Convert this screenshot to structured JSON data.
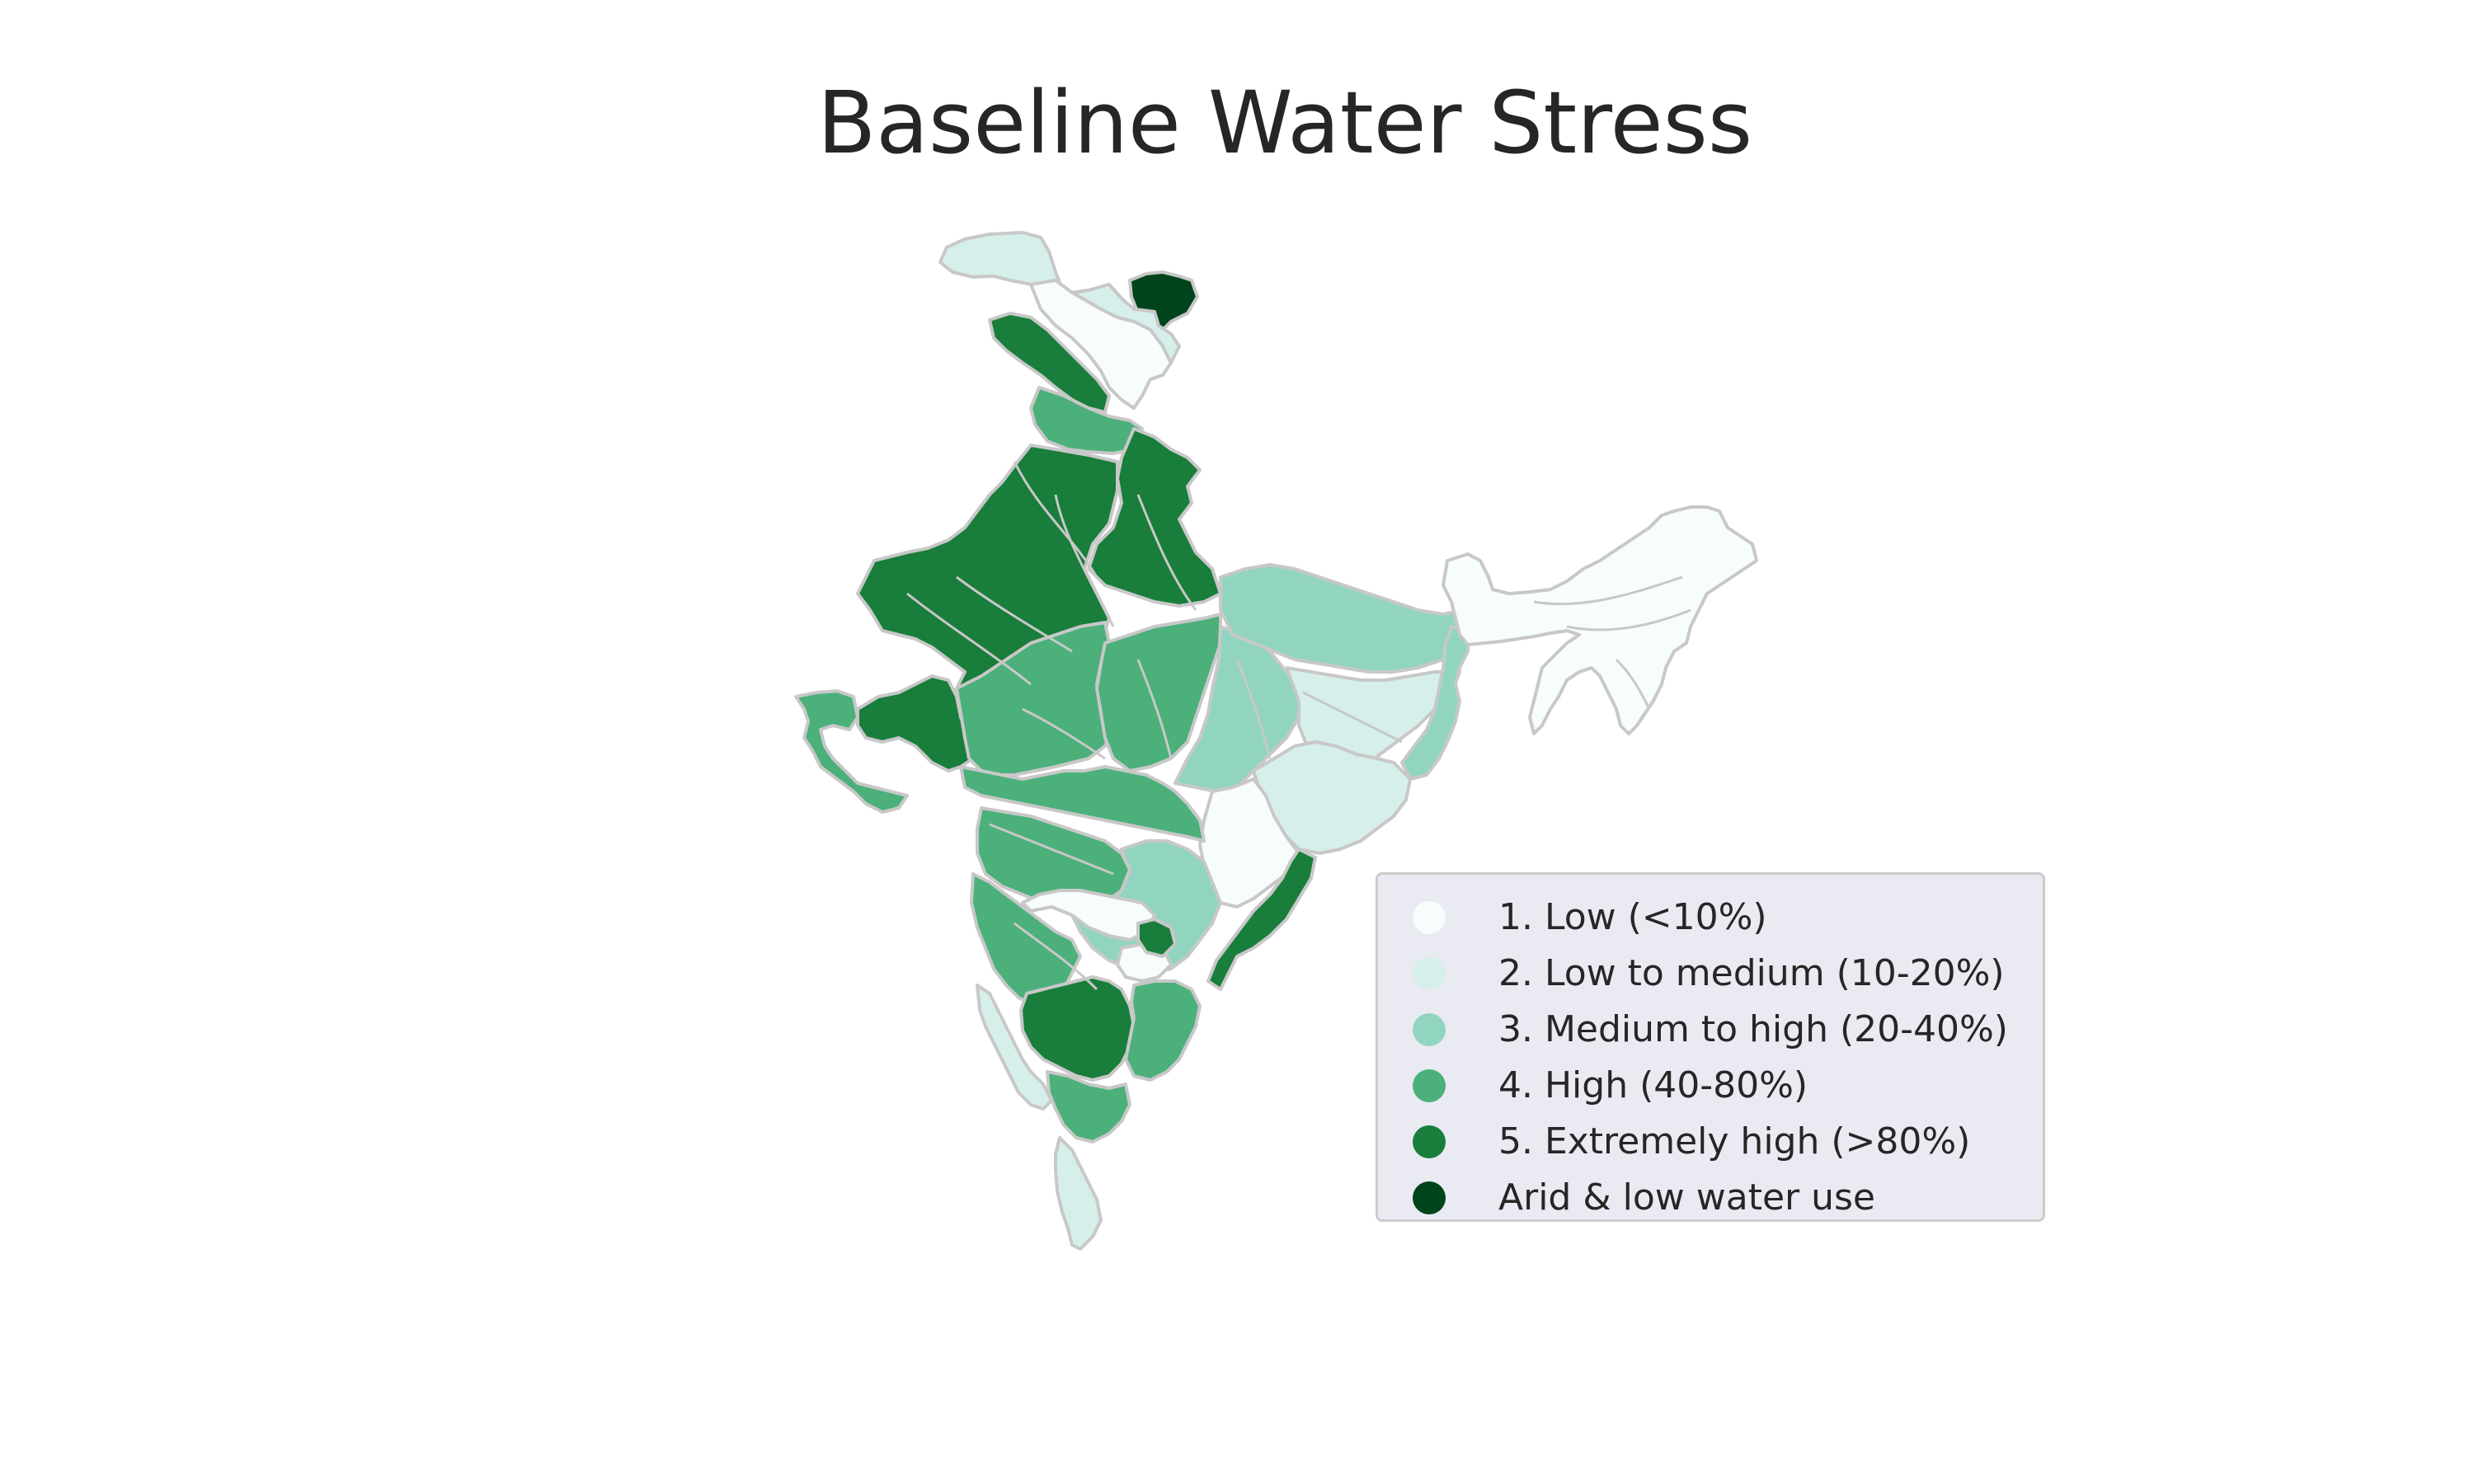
{
  "title": "Baseline Water Stress",
  "legend": [
    {
      "label": "1. Low (<10%)",
      "color": "#f7fcfd"
    },
    {
      "label": "2. Low to medium (10-20%)",
      "color": "#d6efea"
    },
    {
      "label": "3. Medium to high (20-40%)",
      "color": "#91d5c0"
    },
    {
      "label": "4. High (40-80%)",
      "color": "#4bb07a"
    },
    {
      "label": "5. Extremely high (>80%)",
      "color": "#197d3b"
    },
    {
      "label": "Arid & low water use",
      "color": "#00441b"
    }
  ],
  "regions": [
    {
      "name": "ladakh-west",
      "cat": 1
    },
    {
      "name": "ladakh-north",
      "cat": 0
    },
    {
      "name": "ladakh-east",
      "cat": 5
    },
    {
      "name": "kashmir-valley",
      "cat": 1
    },
    {
      "name": "punjab-north",
      "cat": 4
    },
    {
      "name": "punjab-himachal-east",
      "cat": 3
    },
    {
      "name": "uttarakhand-up-west",
      "cat": 4
    },
    {
      "name": "rajasthan-haryana",
      "cat": 4
    },
    {
      "name": "gujarat-north",
      "cat": 4
    },
    {
      "name": "kutch-peninsula",
      "cat": 3
    },
    {
      "name": "rajasthan-south-mp-west",
      "cat": 3
    },
    {
      "name": "madhya-pradesh-central",
      "cat": 3
    },
    {
      "name": "narmada-tapi-belt",
      "cat": 2
    },
    {
      "name": "up-bihar-plains",
      "cat": 2
    },
    {
      "name": "bihar-south-jharkhand",
      "cat": 1
    },
    {
      "name": "west-bengal",
      "cat": 2
    },
    {
      "name": "chhattisgarh-odisha",
      "cat": 1
    },
    {
      "name": "odisha-south",
      "cat": 0
    },
    {
      "name": "maharashtra-west",
      "cat": 3
    },
    {
      "name": "maharashtra-central",
      "cat": 3
    },
    {
      "name": "telangana-deccan",
      "cat": 2
    },
    {
      "name": "deccan-interior",
      "cat": 0
    },
    {
      "name": "andhra-coast",
      "cat": 4
    },
    {
      "name": "karnataka-interior",
      "cat": 3
    },
    {
      "name": "karnataka-south",
      "cat": 4
    },
    {
      "name": "tamil-nadu-east",
      "cat": 3
    },
    {
      "name": "tamil-nadu-south",
      "cat": 3
    },
    {
      "name": "western-ghats-goa",
      "cat": 1
    },
    {
      "name": "kerala",
      "cat": 1
    },
    {
      "name": "northeast-india",
      "cat": 0
    }
  ]
}
